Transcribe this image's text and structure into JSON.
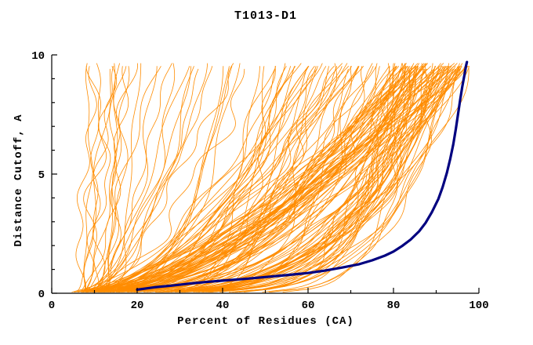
{
  "chart_data": {
    "type": "line",
    "title": "T1013-D1",
    "xlabel": "Percent of Residues (CA)",
    "ylabel": "Distance Cutoff, A",
    "xlim": [
      0,
      100
    ],
    "ylim": [
      0,
      10
    ],
    "x_ticks": [
      0,
      20,
      40,
      60,
      80,
      100
    ],
    "y_ticks": [
      0,
      5,
      10
    ],
    "x_minor_ticks": [
      10,
      30,
      50,
      70,
      90
    ],
    "y_minor_ticks": [
      1,
      2,
      3,
      4,
      6,
      7,
      8,
      9
    ],
    "grid": false,
    "legend": "none",
    "colors": {
      "ensemble": "#FF8C00",
      "highlight": "#000080",
      "axis": "#000000",
      "background": "#FFFFFF"
    },
    "highlight_series": {
      "name": "best-model-curve",
      "color": "#000080",
      "points": [
        [
          20,
          0.15
        ],
        [
          24,
          0.25
        ],
        [
          28,
          0.32
        ],
        [
          32,
          0.4
        ],
        [
          36,
          0.47
        ],
        [
          40,
          0.53
        ],
        [
          45,
          0.6
        ],
        [
          50,
          0.68
        ],
        [
          55,
          0.76
        ],
        [
          60,
          0.85
        ],
        [
          64,
          0.95
        ],
        [
          68,
          1.08
        ],
        [
          72,
          1.22
        ],
        [
          75,
          1.38
        ],
        [
          78,
          1.58
        ],
        [
          80,
          1.75
        ],
        [
          82,
          1.98
        ],
        [
          84,
          2.25
        ],
        [
          86,
          2.6
        ],
        [
          87.5,
          2.95
        ],
        [
          89,
          3.4
        ],
        [
          90.5,
          3.95
        ],
        [
          91.5,
          4.45
        ],
        [
          92.5,
          5.05
        ],
        [
          93.3,
          5.65
        ],
        [
          94.0,
          6.25
        ],
        [
          94.6,
          6.9
        ],
        [
          95.1,
          7.5
        ],
        [
          95.6,
          8.1
        ],
        [
          96.1,
          8.65
        ],
        [
          96.6,
          9.15
        ],
        [
          97.0,
          9.55
        ],
        [
          97.2,
          9.7
        ]
      ]
    },
    "ensemble": {
      "name": "model-curves",
      "color": "#FF8C00",
      "count": 170,
      "seed": 1013
    }
  }
}
